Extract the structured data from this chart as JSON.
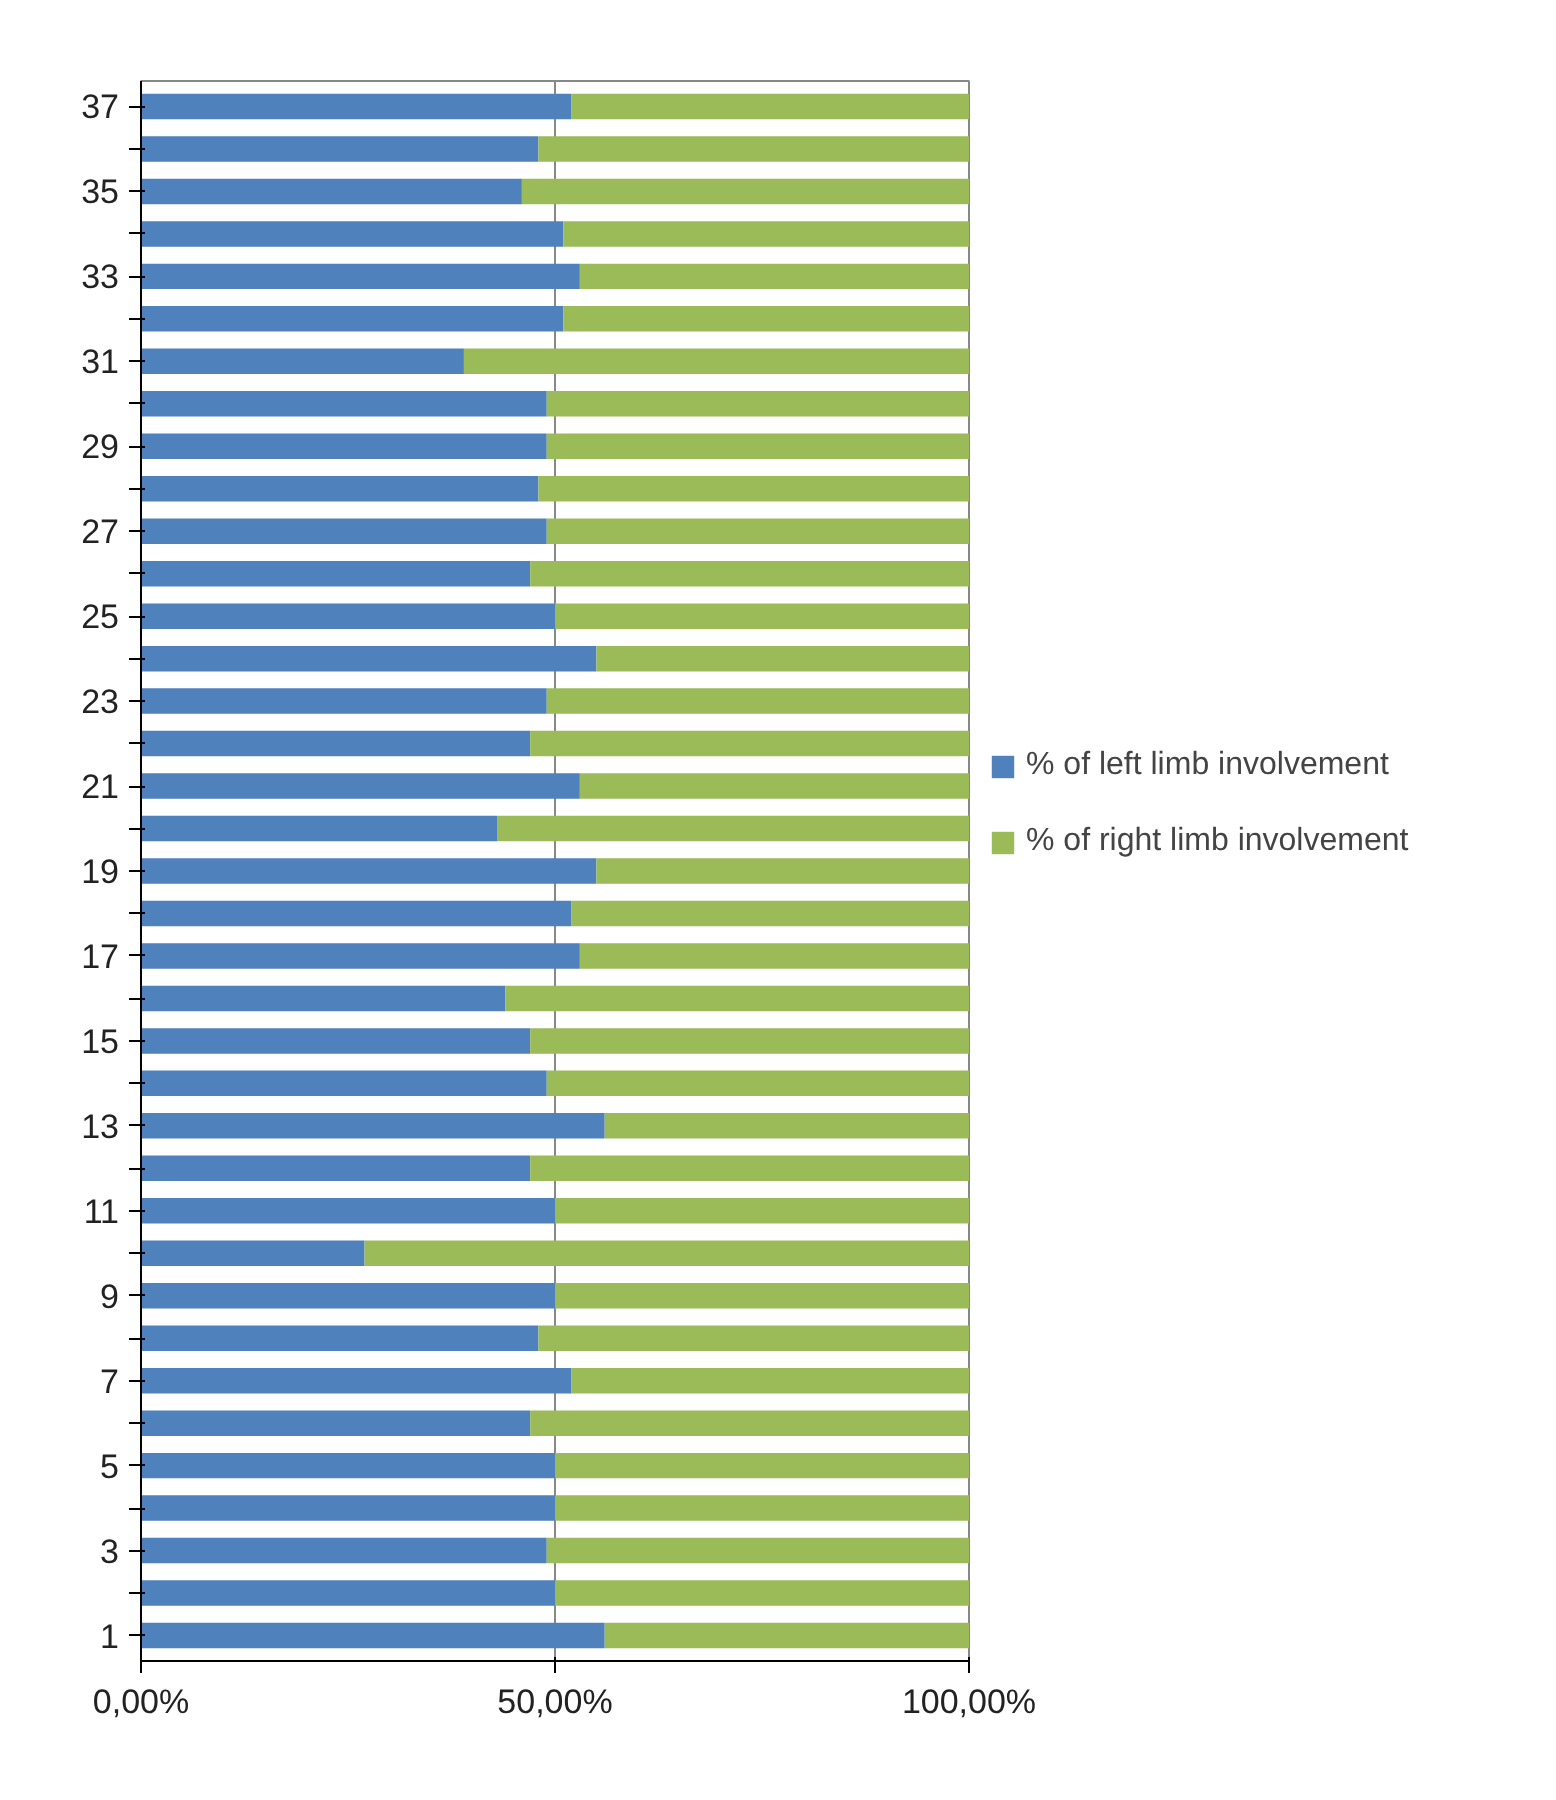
{
  "chart_data": {
    "type": "bar",
    "orientation": "horizontal",
    "stacked": true,
    "categories": [
      "37",
      null,
      "35",
      null,
      "33",
      null,
      "31",
      null,
      "29",
      null,
      "27",
      null,
      "25",
      null,
      "23",
      null,
      "21",
      null,
      "19",
      null,
      "17",
      null,
      "15",
      null,
      "13",
      null,
      "11",
      null,
      "9",
      null,
      "7",
      null,
      "5",
      null,
      "3",
      null,
      "1"
    ],
    "series": [
      {
        "name": "% of left limb involvement",
        "color": "#4f81bd",
        "values": [
          52,
          48,
          46,
          51,
          53,
          51,
          39,
          49,
          49,
          48,
          49,
          47,
          50,
          55,
          49,
          47,
          53,
          43,
          55,
          52,
          53,
          44,
          47,
          49,
          56,
          47,
          50,
          27,
          50,
          48,
          52,
          47,
          50,
          50,
          49,
          50,
          56
        ]
      },
      {
        "name": "% of right limb involvement",
        "color": "#9bbb59",
        "values": [
          48,
          52,
          54,
          49,
          47,
          49,
          61,
          51,
          51,
          52,
          51,
          53,
          50,
          45,
          51,
          53,
          47,
          57,
          45,
          48,
          47,
          56,
          53,
          51,
          44,
          53,
          50,
          73,
          50,
          52,
          48,
          53,
          50,
          50,
          51,
          50,
          44
        ]
      }
    ],
    "xlim": [
      0,
      100
    ],
    "xticks": [
      {
        "value": 0,
        "label": "0,00%"
      },
      {
        "value": 50,
        "label": "50,00%"
      },
      {
        "value": 100,
        "label": "100,00%"
      }
    ],
    "grid": "x",
    "legend": "right"
  }
}
